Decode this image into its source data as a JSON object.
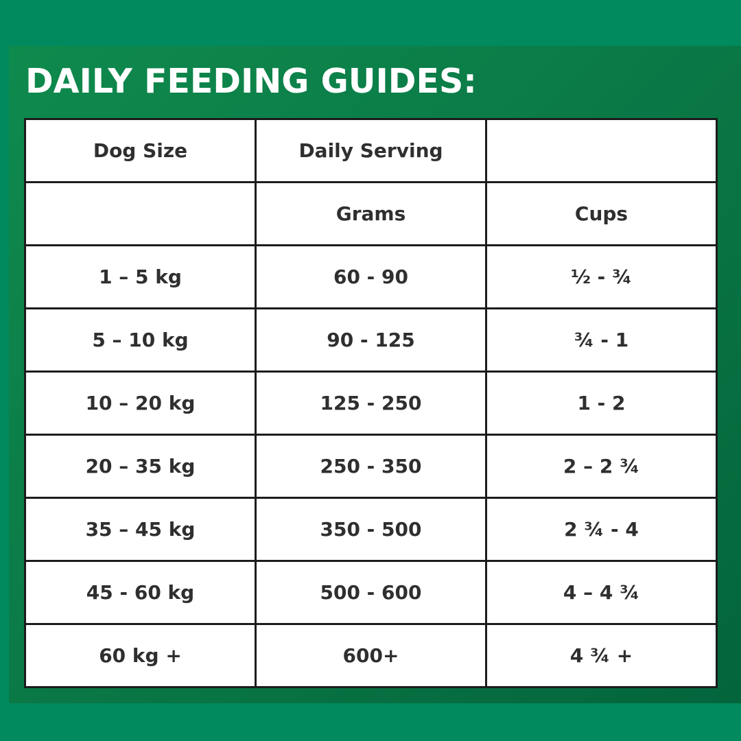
{
  "title": "DAILY FEEDING GUIDES:",
  "colors": {
    "background": "#008a5e",
    "panel": "#0b7a47",
    "table_border": "#1c1c1c",
    "cell_text": "#2f2f2f",
    "title_text": "#ffffff"
  },
  "table": {
    "header_row": [
      "Dog Size",
      "Daily Serving",
      ""
    ],
    "subheader_row": [
      "",
      "Grams",
      "Cups"
    ],
    "rows": [
      [
        "1 – 5 kg",
        "60 - 90",
        "½ - ¾"
      ],
      [
        "5 – 10 kg",
        "90 - 125",
        "¾ - 1"
      ],
      [
        "10 – 20 kg",
        "125 - 250",
        "1 - 2"
      ],
      [
        "20 – 35 kg",
        "250 - 350",
        "2 – 2 ¾"
      ],
      [
        "35 – 45 kg",
        "350 - 500",
        "2 ¾ - 4"
      ],
      [
        "45 - 60 kg",
        "500 - 600",
        "4 – 4 ¾"
      ],
      [
        "60 kg +",
        "600+",
        "4 ¾ +"
      ]
    ]
  }
}
